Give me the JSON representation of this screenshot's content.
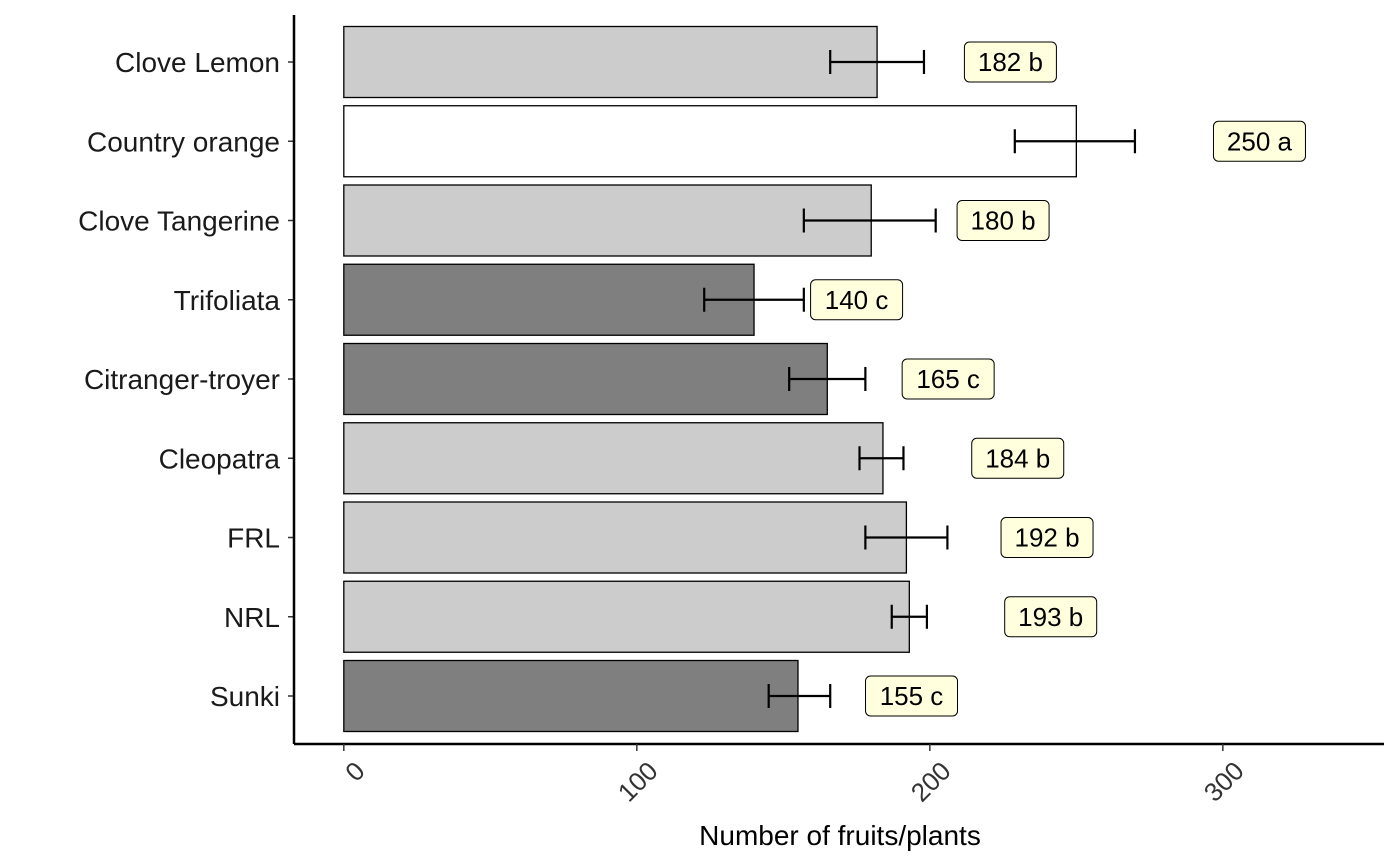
{
  "chart_data": {
    "type": "bar",
    "orientation": "horizontal",
    "categories": [
      "Clove Lemon",
      "Country orange",
      "Clove Tangerine",
      "Trifoliata",
      "Citranger-troyer",
      "Cleopatra",
      "FRL",
      "NRL",
      "Sunki"
    ],
    "values": [
      182,
      250,
      180,
      140,
      165,
      184,
      192,
      193,
      155
    ],
    "error_low": [
      166,
      229,
      157,
      123,
      152,
      176,
      178,
      187,
      145
    ],
    "error_high": [
      198,
      270,
      202,
      157,
      178,
      191,
      206,
      199,
      166
    ],
    "labels": [
      "182 b",
      "250 a",
      "180 b",
      "140 c",
      "165 c",
      "184 b",
      "192 b",
      "193 b",
      "155 c"
    ],
    "groups": [
      "b",
      "a",
      "b",
      "c",
      "c",
      "b",
      "b",
      "b",
      "c"
    ],
    "group_colors": {
      "a": "#ffffff",
      "b": "#cccccc",
      "c": "#7f7f7f"
    },
    "label_box_color": "#ffffdd",
    "title": "",
    "xlabel": "Number of fruits/plants",
    "ylabel": "",
    "xlim": [
      -17,
      355
    ],
    "xticks": [
      0,
      100,
      200,
      300
    ],
    "xtick_labels": [
      "0",
      "100",
      "200",
      "300"
    ],
    "grid": false,
    "legend": "none"
  }
}
